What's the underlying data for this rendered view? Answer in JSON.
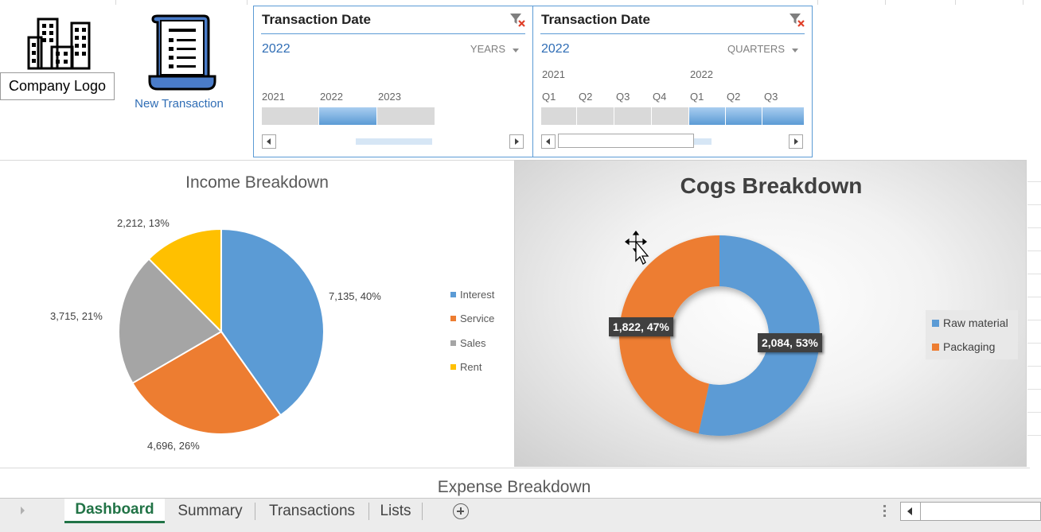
{
  "company_logo": {
    "label": "Company Logo",
    "icon": "building-icon"
  },
  "new_transaction": {
    "label": "New Transaction",
    "icon": "receipt-icon"
  },
  "slicer_years": {
    "title": "Transaction Date",
    "selected": "2022",
    "level": "YEARS",
    "ticks": [
      "2021",
      "2022",
      "2023"
    ],
    "selected_index": 1
  },
  "slicer_quarters": {
    "title": "Transaction Date",
    "selected": "2022",
    "level": "QUARTERS",
    "year_labels": [
      "2021",
      "2022"
    ],
    "ticks": [
      "Q1",
      "Q2",
      "Q3",
      "Q4",
      "Q1",
      "Q2",
      "Q3"
    ]
  },
  "colors": {
    "blue": "#5b9bd5",
    "orange": "#ed7d31",
    "gray": "#a5a5a5",
    "yellow": "#ffc000",
    "excel_green": "#217346"
  },
  "chart_data": [
    {
      "type": "pie",
      "title": "Income Breakdown",
      "categories": [
        "Interest",
        "Service",
        "Sales",
        "Rent"
      ],
      "values": [
        7135,
        4696,
        3715,
        2212
      ],
      "percents": [
        40,
        26,
        21,
        13
      ],
      "labels": [
        "7,135, 40%",
        "4,696, 26%",
        "3,715, 21%",
        "2,212, 13%"
      ],
      "legend_position": "right"
    },
    {
      "type": "pie",
      "subtype": "donut",
      "title": "Cogs Breakdown",
      "categories": [
        "Raw material",
        "Packaging"
      ],
      "values": [
        2084,
        1822
      ],
      "percents": [
        53,
        47
      ],
      "labels": [
        "2,084, 53%",
        "1,822, 47%"
      ],
      "legend_position": "right"
    }
  ],
  "expense_title": "Expense Breakdown",
  "sheet_tabs": [
    "Dashboard",
    "Summary",
    "Transactions",
    "Lists"
  ],
  "active_tab": "Dashboard"
}
